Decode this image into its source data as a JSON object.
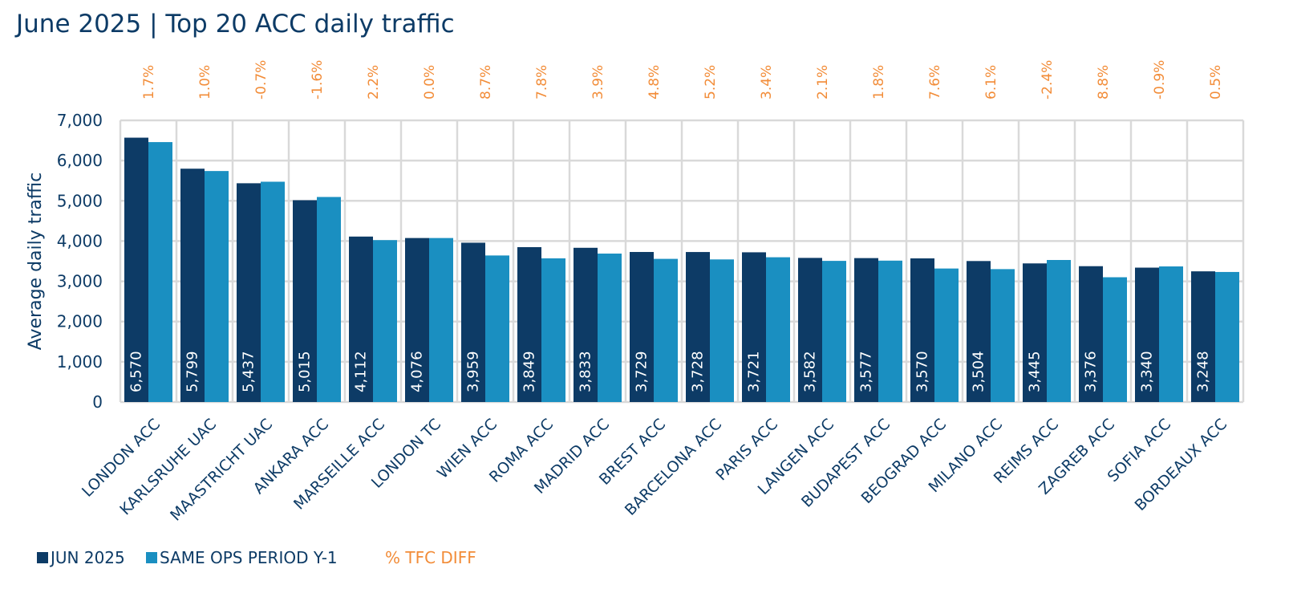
{
  "chart_data": {
    "type": "bar",
    "title": "June 2025 | Top 20 ACC daily traffic",
    "ylabel": "Average daily traffic",
    "xlabel": "",
    "ylim": [
      0,
      7000
    ],
    "yticks": [
      0,
      1000,
      2000,
      3000,
      4000,
      5000,
      6000,
      7000
    ],
    "ytick_labels": [
      "0",
      "1,000",
      "2,000",
      "3,000",
      "4,000",
      "5,000",
      "6,000",
      "7,000"
    ],
    "grid": true,
    "legend_position": "bottom-left",
    "categories": [
      "LONDON ACC",
      "KARLSRUHE UAC",
      "MAASTRICHT UAC",
      "ANKARA ACC",
      "MARSEILLE ACC",
      "LONDON TC",
      "WIEN ACC",
      "ROMA ACC",
      "MADRID ACC",
      "BREST ACC",
      "BARCELONA ACC",
      "PARIS ACC",
      "LANGEN ACC",
      "BUDAPEST ACC",
      "BEOGRAD ACC",
      "MILANO ACC",
      "REIMS ACC",
      "ZAGREB ACC",
      "SOFIA ACC",
      "BORDEAUX ACC"
    ],
    "series": [
      {
        "name": "JUN 2025",
        "color": "#0d3b66",
        "values": [
          6570,
          5799,
          5437,
          5015,
          4112,
          4076,
          3959,
          3849,
          3833,
          3729,
          3728,
          3721,
          3582,
          3577,
          3570,
          3504,
          3445,
          3376,
          3340,
          3248
        ],
        "value_labels": [
          "6,570",
          "5,799",
          "5,437",
          "5,015",
          "4,112",
          "4,076",
          "3,959",
          "3,849",
          "3,833",
          "3,729",
          "3,728",
          "3,721",
          "3,582",
          "3,577",
          "3,570",
          "3,504",
          "3,445",
          "3,376",
          "3,340",
          "3,248"
        ]
      },
      {
        "name": "SAME OPS PERIOD Y-1",
        "color": "#1a8fc1",
        "values": [
          6460,
          5741,
          5475,
          5096,
          4024,
          4076,
          3642,
          3571,
          3689,
          3558,
          3544,
          3598,
          3508,
          3514,
          3318,
          3303,
          3530,
          3101,
          3370,
          3232
        ]
      }
    ],
    "pct_diff": {
      "name": "% TFC DIFF",
      "color": "#f28c38",
      "labels": [
        "1.7%",
        "1.0%",
        "-0.7%",
        "-1.6%",
        "2.2%",
        "0.0%",
        "8.7%",
        "7.8%",
        "3.9%",
        "4.8%",
        "5.2%",
        "3.4%",
        "2.1%",
        "1.8%",
        "7.6%",
        "6.1%",
        "-2.4%",
        "8.8%",
        "-0.9%",
        "0.5%"
      ]
    }
  }
}
